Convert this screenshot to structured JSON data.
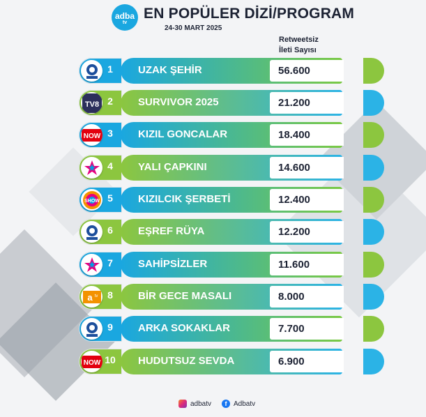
{
  "header": {
    "logo_text": "adba",
    "logo_sub": "tv",
    "title": "EN POPÜLER DİZİ/PROGRAM",
    "date": "24-30 MART 2025",
    "column_label_line1": "Retweetsiz",
    "column_label_line2": "İleti Sayısı"
  },
  "rows": [
    {
      "rank": "1",
      "name": "UZAK ŞEHİR",
      "value": "56.600",
      "channel_icon": "kanal-d-icon",
      "channel_text": "KANAL D"
    },
    {
      "rank": "2",
      "name": "SURVIVOR 2025",
      "value": "21.200",
      "channel_icon": "tv8-icon",
      "channel_text": "TV8"
    },
    {
      "rank": "3",
      "name": "KIZIL GONCALAR",
      "value": "18.400",
      "channel_icon": "now-icon",
      "channel_text": "NOW"
    },
    {
      "rank": "4",
      "name": "YALI ÇAPKINI",
      "value": "14.600",
      "channel_icon": "star-tv-icon",
      "channel_text": "STAR"
    },
    {
      "rank": "5",
      "name": "KIZILCIK ŞERBETİ",
      "value": "12.400",
      "channel_icon": "show-tv-icon",
      "channel_text": "SHOW"
    },
    {
      "rank": "6",
      "name": "EŞREF RÜYA",
      "value": "12.200",
      "channel_icon": "kanal-d-icon",
      "channel_text": "KANAL D"
    },
    {
      "rank": "7",
      "name": "SAHİPSİZLER",
      "value": "11.600",
      "channel_icon": "star-tv-icon",
      "channel_text": "STAR"
    },
    {
      "rank": "8",
      "name": "BİR GECE MASALI",
      "value": "8.000",
      "channel_icon": "atv-icon",
      "channel_text": "atv"
    },
    {
      "rank": "9",
      "name": "ARKA SOKAKLAR",
      "value": "7.700",
      "channel_icon": "kanal-d-icon",
      "channel_text": "KANAL D"
    },
    {
      "rank": "10",
      "name": "HUDUTSUZ SEVDA",
      "value": "6.900",
      "channel_icon": "now-icon",
      "channel_text": "NOW"
    }
  ],
  "footer": {
    "instagram": "adbatv",
    "facebook": "Adbatv"
  },
  "colors": {
    "blue": "#1aa7e0",
    "green": "#8cc63f",
    "text": "#1c2233"
  }
}
